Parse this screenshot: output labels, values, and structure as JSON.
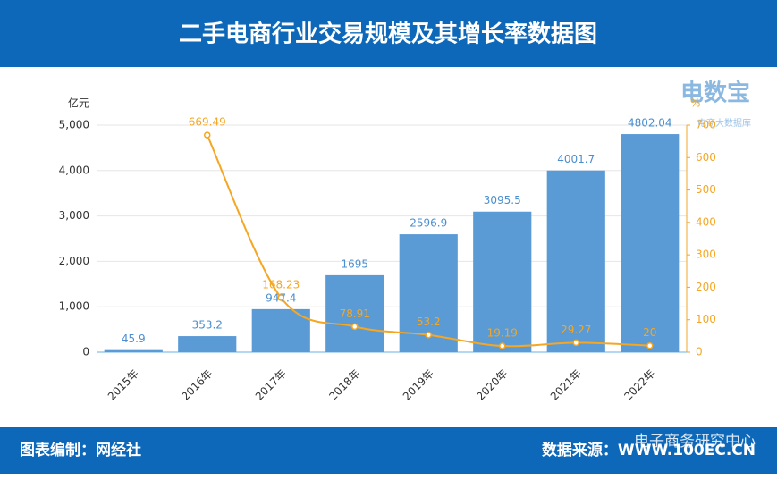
{
  "header": {
    "title": "二手电商行业交易规模及其增长率数据图"
  },
  "footer": {
    "left": "图表编制：网经社",
    "right": "数据来源：WWW.100EC.CN"
  },
  "watermarks": {
    "logo": "电数宝",
    "logo_sub": "电商大数据库",
    "wechat": "电子商务研究中心"
  },
  "chart_data": {
    "type": "bar-line",
    "y_unit": "亿元",
    "y2_unit": "%",
    "categories": [
      "2015年",
      "2016年",
      "2017年",
      "2018年",
      "2019年",
      "2020年",
      "2021年",
      "2022年"
    ],
    "series": [
      {
        "type": "bar",
        "color": "#5b9bd5",
        "values": [
          45.9,
          353.2,
          947.4,
          1695,
          2596.9,
          3095.5,
          4001.7,
          4802.04
        ]
      },
      {
        "type": "line",
        "axis": "y2",
        "color": "#f5a623",
        "values": [
          null,
          669.49,
          168.23,
          78.91,
          53.2,
          19.19,
          29.27,
          20
        ]
      }
    ],
    "ylim": [
      0,
      5000
    ],
    "yticks": [
      0,
      {
        "value": 1000,
        "label": "1,000"
      },
      {
        "value": 2000,
        "label": "2,000"
      },
      {
        "value": 3000,
        "label": "3,000"
      },
      {
        "value": 4000,
        "label": "4,000"
      },
      {
        "value": 5000,
        "label": "5,000"
      }
    ],
    "y2lim": [
      0,
      700
    ],
    "y2ticks": [
      0,
      100,
      200,
      300,
      400,
      500,
      600,
      700
    ],
    "grid": true
  }
}
